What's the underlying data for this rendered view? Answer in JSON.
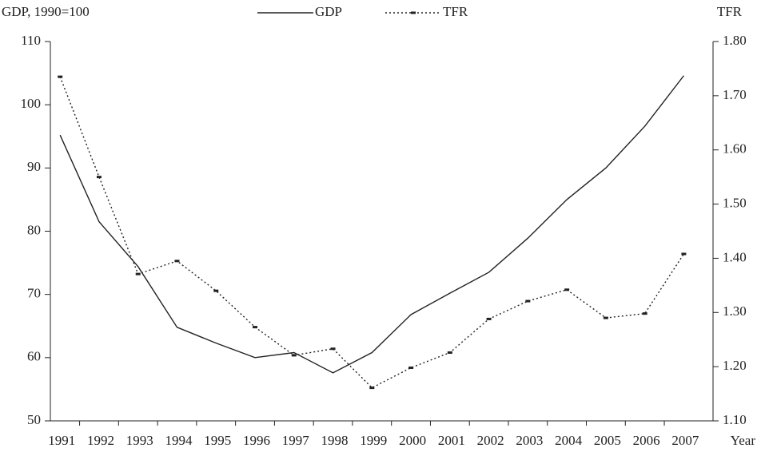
{
  "chart_data": {
    "type": "line",
    "y_label": "GDP, 1990=100",
    "y2_label": "TFR",
    "x_label": "Year",
    "categories": [
      "1991",
      "1992",
      "1993",
      "1994",
      "1995",
      "1996",
      "1997",
      "1998",
      "1999",
      "2000",
      "2001",
      "2002",
      "2003",
      "2004",
      "2005",
      "2006",
      "2007"
    ],
    "series": [
      {
        "name": "GDP",
        "color": "#222222",
        "dash": "solid",
        "values": [
          95.2,
          81.5,
          74.4,
          64.8,
          62.3,
          60.0,
          60.8,
          57.6,
          60.8,
          66.8,
          70.2,
          73.5,
          78.9,
          85.0,
          90.0,
          96.6,
          104.6
        ]
      },
      {
        "name": "TFR",
        "color": "#222222",
        "dash": "dotted",
        "axis": "y2",
        "values": [
          1.735,
          1.55,
          1.371,
          1.395,
          1.34,
          1.273,
          1.221,
          1.233,
          1.161,
          1.198,
          1.226,
          1.288,
          1.321,
          1.342,
          1.29,
          1.298,
          1.408
        ]
      }
    ],
    "ylim": [
      50,
      110
    ],
    "yticks": [
      50,
      60,
      70,
      80,
      90,
      100,
      110
    ],
    "y2lim": [
      1.1,
      1.8
    ],
    "y2ticks": [
      {
        "value": 1.1,
        "label": "1.10"
      },
      {
        "value": 1.2,
        "label": "1.20"
      },
      {
        "value": 1.3,
        "label": "1.30"
      },
      {
        "value": 1.4,
        "label": "1.40"
      },
      {
        "value": 1.5,
        "label": "1.50"
      },
      {
        "value": 1.6,
        "label": "1.60"
      },
      {
        "value": 1.7,
        "label": "1.70"
      },
      {
        "value": 1.8,
        "label": "1.80"
      }
    ],
    "legend": "top-center",
    "grid": false
  }
}
